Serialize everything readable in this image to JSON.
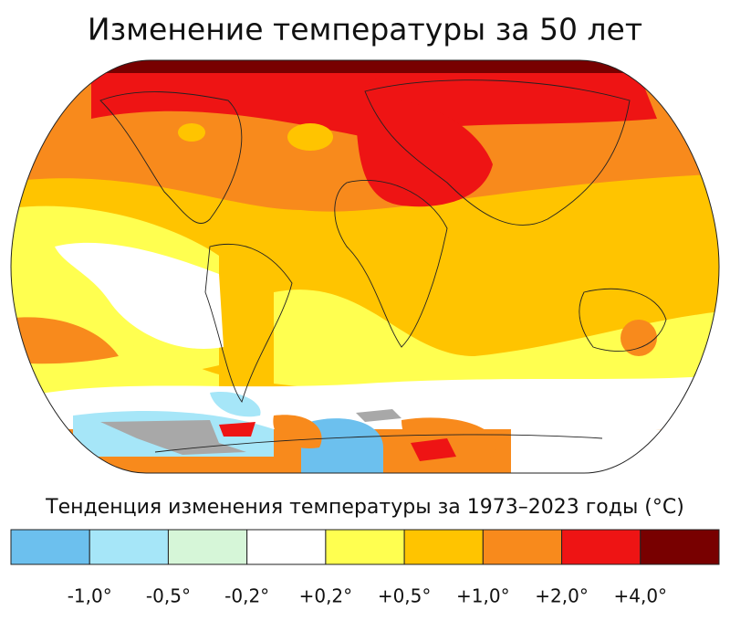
{
  "title": "Изменение температуры за 50 лет",
  "legend": {
    "title": "Тенденция изменения температуры за 1973–2023 годы (°C)",
    "colors": [
      "#6cc0ee",
      "#a6e6f8",
      "#d6f6d8",
      "#ffffff",
      "#ffff50",
      "#ffc400",
      "#f88a1c",
      "#ee1414",
      "#780000"
    ],
    "labels": [
      "-1,0°",
      "-0,5°",
      "-0,2°",
      "+0,2°",
      "+0,5°",
      "+1,0°",
      "+2,0°",
      "+4,0°"
    ]
  }
}
